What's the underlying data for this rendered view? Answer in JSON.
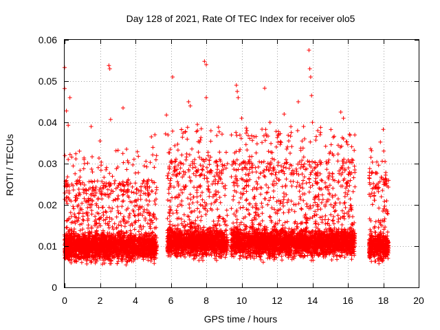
{
  "chart_data": {
    "type": "scatter",
    "title": "Day 128 of 2021, Rate Of TEC Index for receiver olo5",
    "xlabel": "GPS time / hours",
    "ylabel": "ROTI / TECUs",
    "xlim": [
      0,
      20
    ],
    "ylim": [
      0,
      0.06
    ],
    "xticks": [
      0,
      2,
      4,
      6,
      8,
      10,
      12,
      14,
      16,
      18,
      20
    ],
    "yticks": [
      0,
      0.01,
      0.02,
      0.03,
      0.04,
      0.05,
      0.06
    ],
    "xtick_labels": [
      "0",
      "2",
      "4",
      "6",
      "8",
      "10",
      "12",
      "14",
      "16",
      "18",
      "20"
    ],
    "ytick_labels": [
      "0",
      "0.01",
      "0.02",
      "0.03",
      "0.04",
      "0.05",
      "0.06"
    ],
    "grid": true,
    "marker": "+",
    "color": "#ff0000",
    "series": [
      {
        "name": "ROTI",
        "segments": [
          {
            "start": 0.0,
            "end": 5.2,
            "base": 0.01,
            "upper": 0.022
          },
          {
            "start": 5.8,
            "end": 9.2,
            "base": 0.011,
            "upper": 0.027
          },
          {
            "start": 9.4,
            "end": 16.4,
            "base": 0.011,
            "upper": 0.027
          },
          {
            "start": 17.2,
            "end": 18.3,
            "base": 0.01,
            "upper": 0.024
          }
        ],
        "outliers": [
          [
            0.0,
            0.0533
          ],
          [
            0.0,
            0.0482
          ],
          [
            0.1,
            0.0428
          ],
          [
            0.2,
            0.0393
          ],
          [
            0.3,
            0.046
          ],
          [
            0.2,
            0.031
          ],
          [
            1.1,
            0.031
          ],
          [
            1.5,
            0.039
          ],
          [
            2.0,
            0.0355
          ],
          [
            2.5,
            0.0538
          ],
          [
            2.55,
            0.053
          ],
          [
            2.6,
            0.0407
          ],
          [
            3.3,
            0.0435
          ],
          [
            3.5,
            0.0335
          ],
          [
            4.0,
            0.0277
          ],
          [
            4.9,
            0.0365
          ],
          [
            5.1,
            0.037
          ],
          [
            5.7,
            0.0372
          ],
          [
            5.75,
            0.0418
          ],
          [
            6.1,
            0.051
          ],
          [
            7.0,
            0.045
          ],
          [
            7.1,
            0.044
          ],
          [
            7.5,
            0.0395
          ],
          [
            7.9,
            0.0548
          ],
          [
            8.0,
            0.054
          ],
          [
            8.0,
            0.046
          ],
          [
            9.2,
            0.03
          ],
          [
            9.7,
            0.049
          ],
          [
            9.75,
            0.0475
          ],
          [
            9.8,
            0.046
          ],
          [
            10.0,
            0.041
          ],
          [
            10.3,
            0.038
          ],
          [
            11.3,
            0.0483
          ],
          [
            11.6,
            0.04
          ],
          [
            12.1,
            0.037
          ],
          [
            12.4,
            0.042
          ],
          [
            13.2,
            0.045
          ],
          [
            13.5,
            0.039
          ],
          [
            13.8,
            0.0575
          ],
          [
            13.85,
            0.053
          ],
          [
            13.9,
            0.051
          ],
          [
            13.95,
            0.0465
          ],
          [
            14.0,
            0.04
          ],
          [
            14.3,
            0.038
          ],
          [
            15.6,
            0.0425
          ],
          [
            15.75,
            0.041
          ],
          [
            17.3,
            0.0315
          ],
          [
            18.0,
            0.0383
          ],
          [
            18.1,
            0.0305
          ]
        ]
      }
    ]
  }
}
